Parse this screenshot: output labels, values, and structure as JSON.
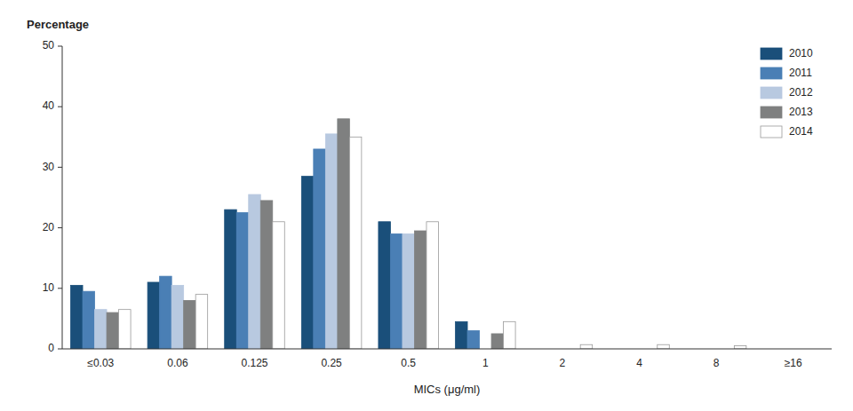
{
  "chart_data": {
    "type": "bar",
    "xlabel": "MICs (μg/ml)",
    "ylabel": "Percentage",
    "categories": [
      "≤0.03",
      "0.06",
      "0.125",
      "0.25",
      "0.5",
      "1",
      "2",
      "4",
      "8",
      "≥16"
    ],
    "series": [
      {
        "name": "2010",
        "color": "#1a4f7a",
        "values": [
          10.5,
          11.0,
          23.0,
          28.5,
          21.0,
          4.5,
          0.0,
          0.0,
          0.0,
          0.0
        ]
      },
      {
        "name": "2011",
        "color": "#4a7fb5",
        "values": [
          9.5,
          12.0,
          22.5,
          33.0,
          19.0,
          3.0,
          0.0,
          0.0,
          0.0,
          0.0
        ]
      },
      {
        "name": "2012",
        "color": "#b8c9e0",
        "values": [
          6.5,
          10.5,
          25.5,
          35.5,
          19.0,
          0.0,
          0.0,
          0.0,
          0.0,
          0.0
        ]
      },
      {
        "name": "2013",
        "color": "#7f8080",
        "values": [
          6.0,
          8.0,
          24.5,
          38.0,
          19.5,
          2.5,
          0.0,
          0.0,
          0.0,
          0.0
        ]
      },
      {
        "name": "2014",
        "color": "#ffffff",
        "values": [
          6.5,
          9.0,
          21.0,
          35.0,
          21.0,
          4.5,
          0.7,
          0.7,
          0.5,
          0.0
        ]
      }
    ],
    "ylim": [
      0,
      50
    ],
    "yticks": [
      0,
      10,
      20,
      30,
      40,
      50
    ],
    "grid": false,
    "legend": "upper right"
  }
}
